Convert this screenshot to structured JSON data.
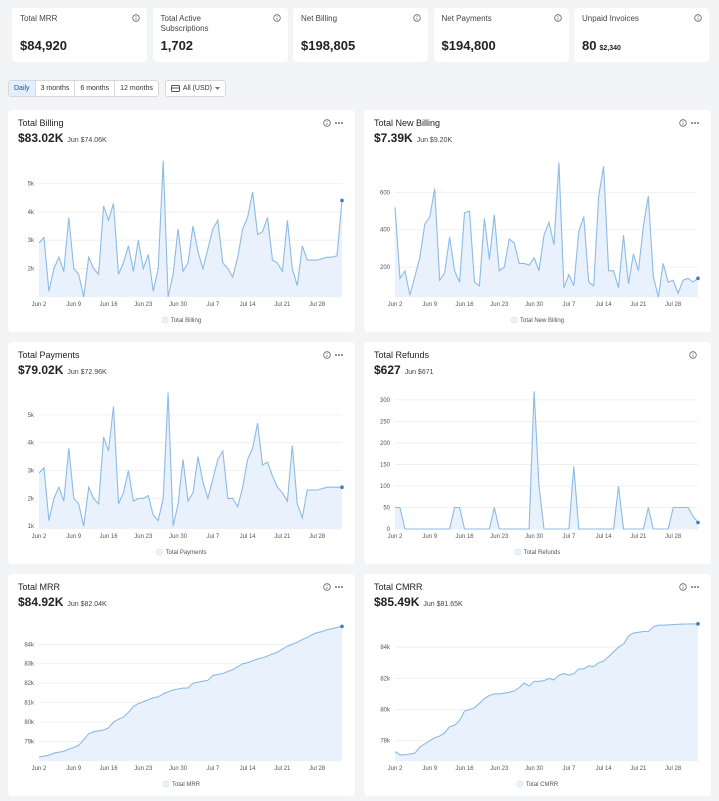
{
  "kpis": [
    {
      "label": "Total MRR",
      "value": "$84,920"
    },
    {
      "label": "Total Active Subscriptions",
      "value": "1,702"
    },
    {
      "label": "Net Billing",
      "value": "$198,805"
    },
    {
      "label": "Net Payments",
      "value": "$194,800"
    },
    {
      "label": "Unpaid Invoices",
      "value": "80",
      "sub": "$2,340"
    }
  ],
  "filters": {
    "periods": [
      "Daily",
      "3 months",
      "6 months",
      "12 months"
    ],
    "currency": "All (USD)"
  },
  "chart_data": [
    {
      "type": "line",
      "title": "Total Billing",
      "value": "$83.02K",
      "subtitle": "Jun $74.06K",
      "categories": [
        "Jun 2",
        null,
        null,
        null,
        null,
        null,
        null,
        "Jun 9",
        null,
        null,
        null,
        null,
        null,
        null,
        "Jun 16",
        null,
        null,
        null,
        null,
        null,
        null,
        "Jun 23",
        null,
        null,
        null,
        null,
        null,
        null,
        "Jun 30",
        null,
        null,
        null,
        null,
        null,
        null,
        "Jul 7",
        null,
        null,
        null,
        null,
        null,
        null,
        "Jul 14",
        null,
        null,
        null,
        null,
        null,
        null,
        "Jul 21",
        null,
        null,
        null,
        null,
        null,
        null,
        "Jul 28",
        null,
        null,
        null,
        null,
        null
      ],
      "series": [
        {
          "name": "Total Billing",
          "color": "#8cbbe6",
          "values": [
            2900,
            3100,
            1200,
            2000,
            2400,
            1900,
            3800,
            2000,
            1800,
            1000,
            2400,
            2000,
            1800,
            4200,
            3700,
            4300,
            1800,
            2200,
            2800,
            1900,
            3000,
            2000,
            2500,
            1200,
            2000,
            5800,
            1000,
            1800,
            3400,
            1900,
            2200,
            3500,
            2600,
            2000,
            2700,
            3400,
            3700,
            2200,
            2000,
            1700,
            2400,
            3400,
            3800,
            4700,
            3200,
            3300,
            3800,
            2300,
            2200,
            1900,
            3700,
            2000,
            1400,
            2800,
            2300,
            2300,
            2300,
            2350,
            2400,
            2400,
            2450,
            4400
          ]
        }
      ],
      "ylim": [
        1000,
        6000
      ],
      "yticks": [
        {
          "value": 2000,
          "label": "2k"
        },
        {
          "value": 3000,
          "label": "3k"
        },
        {
          "value": 4000,
          "label": "4k"
        },
        {
          "value": 5000,
          "label": "5k"
        }
      ],
      "grid": true,
      "area_color": "#e8f1fc",
      "marker_color": "#3a7bd5"
    },
    {
      "type": "line",
      "title": "Total New Billing",
      "value": "$7.39K",
      "subtitle": "Jun $9.20K",
      "categories": [
        "Jun 2",
        null,
        null,
        null,
        null,
        null,
        null,
        "Jun 9",
        null,
        null,
        null,
        null,
        null,
        null,
        "Jun 16",
        null,
        null,
        null,
        null,
        null,
        null,
        "Jun 23",
        null,
        null,
        null,
        null,
        null,
        null,
        "Jun 30",
        null,
        null,
        null,
        null,
        null,
        null,
        "Jul 7",
        null,
        null,
        null,
        null,
        null,
        null,
        "Jul 14",
        null,
        null,
        null,
        null,
        null,
        null,
        "Jul 21",
        null,
        null,
        null,
        null,
        null,
        null,
        "Jul 28",
        null,
        null,
        null,
        null,
        null
      ],
      "series": [
        {
          "name": "Total New Billing",
          "color": "#8cbbe6",
          "values": [
            520,
            140,
            180,
            50,
            150,
            250,
            430,
            470,
            620,
            130,
            170,
            360,
            180,
            120,
            490,
            500,
            120,
            100,
            460,
            240,
            480,
            180,
            200,
            350,
            330,
            220,
            220,
            210,
            250,
            180,
            370,
            440,
            320,
            760,
            90,
            160,
            100,
            390,
            470,
            120,
            100,
            580,
            740,
            180,
            180,
            90,
            370,
            110,
            270,
            180,
            420,
            580,
            150,
            40,
            220,
            120,
            130,
            60,
            130,
            140,
            120,
            140
          ]
        }
      ],
      "ylim": [
        40,
        800
      ],
      "yticks": [
        200,
        400,
        600
      ],
      "grid": true,
      "area_color": "#e8f1fc",
      "marker_color": "#3a7bd5"
    },
    {
      "type": "line",
      "title": "Total Payments",
      "value": "$79.02K",
      "subtitle": "Jun $72.96K",
      "categories": [
        "Jun 2",
        null,
        null,
        null,
        null,
        null,
        null,
        "Jun 9",
        null,
        null,
        null,
        null,
        null,
        null,
        "Jun 16",
        null,
        null,
        null,
        null,
        null,
        null,
        "Jun 23",
        null,
        null,
        null,
        null,
        null,
        null,
        "Jun 30",
        null,
        null,
        null,
        null,
        null,
        null,
        "Jul 7",
        null,
        null,
        null,
        null,
        null,
        null,
        "Jul 14",
        null,
        null,
        null,
        null,
        null,
        null,
        "Jul 21",
        null,
        null,
        null,
        null,
        null,
        null,
        "Jul 28",
        null,
        null,
        null,
        null,
        null
      ],
      "series": [
        {
          "name": "Total Payments",
          "color": "#8cbbe6",
          "values": [
            2900,
            3100,
            1200,
            2000,
            2400,
            1900,
            3800,
            2000,
            1800,
            1000,
            2400,
            2000,
            1800,
            4200,
            3700,
            5300,
            1800,
            2200,
            3000,
            1900,
            2000,
            2000,
            2100,
            1400,
            1200,
            2000,
            5800,
            1000,
            1800,
            3400,
            1900,
            2200,
            3500,
            2600,
            2000,
            2700,
            3400,
            3700,
            2000,
            2000,
            1700,
            2400,
            3400,
            3800,
            4700,
            3200,
            3300,
            2800,
            2400,
            2200,
            1900,
            3900,
            1800,
            1300,
            2300,
            2300,
            2300,
            2350,
            2400,
            2400,
            2400,
            2400
          ]
        }
      ],
      "ylim": [
        900,
        6000
      ],
      "yticks": [
        {
          "value": 1000,
          "label": "1k"
        },
        {
          "value": 2000,
          "label": "2k"
        },
        {
          "value": 3000,
          "label": "3k"
        },
        {
          "value": 4000,
          "label": "4k"
        },
        {
          "value": 5000,
          "label": "5k"
        }
      ],
      "grid": true,
      "area_color": "#e8f1fc",
      "marker_color": "#3a7bd5"
    },
    {
      "type": "line",
      "title": "Total Refunds",
      "value": "$627",
      "subtitle": "Jun $671",
      "categories": [
        "Jun 2",
        null,
        null,
        null,
        null,
        null,
        null,
        "Jun 9",
        null,
        null,
        null,
        null,
        null,
        null,
        "Jun 16",
        null,
        null,
        null,
        null,
        null,
        null,
        "Jun 23",
        null,
        null,
        null,
        null,
        null,
        null,
        "Jun 30",
        null,
        null,
        null,
        null,
        null,
        null,
        "Jul 7",
        null,
        null,
        null,
        null,
        null,
        null,
        "Jul 14",
        null,
        null,
        null,
        null,
        null,
        null,
        "Jul 21",
        null,
        null,
        null,
        null,
        null,
        null,
        "Jul 28",
        null,
        null,
        null,
        null,
        null
      ],
      "series": [
        {
          "name": "Total Refunds",
          "color": "#8cbbe6",
          "values": [
            50,
            50,
            0,
            0,
            0,
            0,
            0,
            0,
            0,
            0,
            0,
            0,
            50,
            50,
            0,
            0,
            0,
            0,
            0,
            0,
            50,
            0,
            0,
            0,
            0,
            0,
            0,
            0,
            320,
            100,
            0,
            0,
            0,
            0,
            0,
            0,
            145,
            0,
            0,
            0,
            0,
            0,
            0,
            0,
            0,
            100,
            0,
            0,
            0,
            0,
            0,
            50,
            0,
            0,
            0,
            0,
            50,
            50,
            50,
            50,
            30,
            15
          ]
        }
      ],
      "ylim": [
        0,
        330
      ],
      "yticks": [
        0,
        50,
        100,
        150,
        200,
        250,
        300
      ],
      "grid": true,
      "area_color": "#e8f1fc",
      "marker_color": "#3a7bd5"
    },
    {
      "type": "line",
      "title": "Total MRR",
      "value": "$84.92K",
      "subtitle": "Jun $82.04K",
      "categories": [
        "Jun 2",
        null,
        null,
        null,
        null,
        null,
        null,
        "Jun 9",
        null,
        null,
        null,
        null,
        null,
        null,
        "Jun 16",
        null,
        null,
        null,
        null,
        null,
        null,
        "Jun 23",
        null,
        null,
        null,
        null,
        null,
        null,
        "Jun 30",
        null,
        null,
        null,
        null,
        null,
        null,
        "Jul 7",
        null,
        null,
        null,
        null,
        null,
        null,
        "Jul 14",
        null,
        null,
        null,
        null,
        null,
        null,
        "Jul 21",
        null,
        null,
        null,
        null,
        null,
        null,
        "Jul 28",
        null,
        null,
        null,
        null,
        null
      ],
      "series": [
        {
          "name": "Total MRR",
          "color": "#8cbbe6",
          "values": [
            78200,
            78250,
            78300,
            78400,
            78450,
            78500,
            78600,
            78700,
            78800,
            79100,
            79400,
            79500,
            79550,
            79600,
            79700,
            80000,
            80150,
            80250,
            80500,
            80800,
            80950,
            81050,
            81150,
            81250,
            81300,
            81450,
            81550,
            81650,
            81700,
            81750,
            81750,
            82000,
            82050,
            82100,
            82150,
            82400,
            82450,
            82500,
            82600,
            82700,
            82850,
            83000,
            83050,
            83150,
            83250,
            83300,
            83400,
            83500,
            83600,
            83750,
            83900,
            84000,
            84100,
            84250,
            84350,
            84500,
            84600,
            84650,
            84750,
            84800,
            84870,
            84920
          ]
        }
      ],
      "ylim": [
        78000,
        85300
      ],
      "yticks": [
        {
          "value": 79000,
          "label": "79k"
        },
        {
          "value": 80000,
          "label": "80k"
        },
        {
          "value": 81000,
          "label": "81k"
        },
        {
          "value": 82000,
          "label": "82k"
        },
        {
          "value": 83000,
          "label": "83k"
        },
        {
          "value": 84000,
          "label": "84k"
        }
      ],
      "grid": true,
      "area_color": "#e8f1fc",
      "marker_color": "#3a7bd5"
    },
    {
      "type": "line",
      "title": "Total CMRR",
      "value": "$85.49K",
      "subtitle": "Jun $81.65K",
      "categories": [
        "Jun 2",
        null,
        null,
        null,
        null,
        null,
        null,
        "Jun 9",
        null,
        null,
        null,
        null,
        null,
        null,
        "Jun 16",
        null,
        null,
        null,
        null,
        null,
        null,
        "Jun 23",
        null,
        null,
        null,
        null,
        null,
        null,
        "Jun 30",
        null,
        null,
        null,
        null,
        null,
        null,
        "Jul 7",
        null,
        null,
        null,
        null,
        null,
        null,
        "Jul 14",
        null,
        null,
        null,
        null,
        null,
        null,
        "Jul 21",
        null,
        null,
        null,
        null,
        null,
        null,
        "Jul 28",
        null,
        null,
        null,
        null,
        null
      ],
      "series": [
        {
          "name": "Total CMRR",
          "color": "#8cbbe6",
          "values": [
            77300,
            77100,
            77100,
            77150,
            77200,
            77600,
            77800,
            78000,
            78200,
            78300,
            78500,
            78900,
            79000,
            79300,
            79900,
            80000,
            80100,
            80400,
            80700,
            80900,
            81000,
            81000,
            81050,
            81100,
            81200,
            81400,
            81700,
            81500,
            81800,
            81800,
            81850,
            82000,
            81900,
            82200,
            82300,
            82200,
            82300,
            82600,
            82600,
            82800,
            82750,
            83000,
            83100,
            83400,
            83700,
            84000,
            84200,
            84700,
            84900,
            84950,
            85000,
            85000,
            85300,
            85400,
            85400,
            85420,
            85440,
            85460,
            85470,
            85480,
            85485,
            85490
          ]
        }
      ],
      "ylim": [
        76700,
        85800
      ],
      "yticks": [
        {
          "value": 78000,
          "label": "78k"
        },
        {
          "value": 80000,
          "label": "80k"
        },
        {
          "value": 82000,
          "label": "82k"
        },
        {
          "value": 84000,
          "label": "84k"
        }
      ],
      "grid": true,
      "area_color": "#e8f1fc",
      "marker_color": "#3a7bd5"
    }
  ]
}
